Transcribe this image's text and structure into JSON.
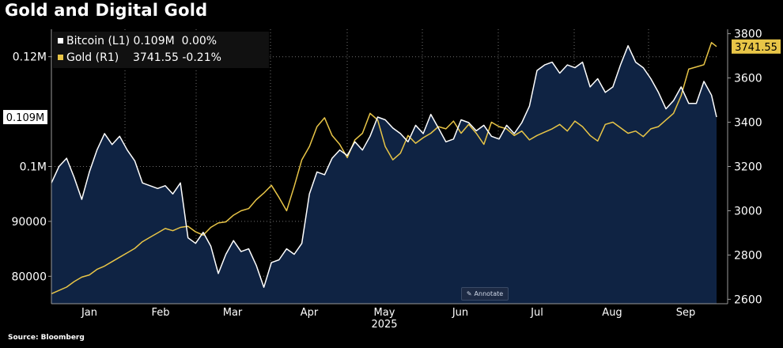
{
  "title": "Gold and Digital Gold",
  "source": "Source: Bloomberg",
  "annotate_label": "Annotate",
  "annotate_icon": "✎",
  "legend": {
    "bitcoin": {
      "name": "Bitcoin (L1)",
      "value": "0.109M",
      "change": "0.00%"
    },
    "gold": {
      "name": "Gold (R1)",
      "value": "3741.55",
      "change": "-0.21%"
    }
  },
  "chart_data": {
    "type": "line",
    "title": "Gold and Digital Gold",
    "xlabel": "2025",
    "x_ticks": [
      "Jan",
      "Feb",
      "Mar",
      "Apr",
      "May",
      "Jun",
      "Jul",
      "Aug",
      "Sep"
    ],
    "left_axis": {
      "ticks": [
        80000,
        90000,
        100000,
        120000
      ],
      "tick_labels": [
        "80000",
        "90000",
        "0.1M",
        "0.12M"
      ],
      "range": [
        75000,
        125000
      ],
      "last_value_label": "0.109M"
    },
    "right_axis": {
      "ticks": [
        2600,
        2800,
        3000,
        3200,
        3400,
        3600,
        3800
      ],
      "tick_labels": [
        "2600",
        "2800",
        "3000",
        "3200",
        "3400",
        "3600",
        "3800"
      ],
      "range": [
        2580,
        3820
      ],
      "last_value_label": "3741.55"
    },
    "colors": {
      "bitcoin": "#ffffff",
      "gold": "#e8c547",
      "area": "#0f2343",
      "grid": "#6f6f6f"
    },
    "series": [
      {
        "name": "Bitcoin (L1)",
        "axis": "left",
        "color": "#ffffff",
        "x": [
          0,
          3,
          6,
          9,
          12,
          15,
          18,
          21,
          24,
          27,
          30,
          33,
          36,
          39,
          42,
          45,
          48,
          51,
          54,
          57,
          60,
          63,
          66,
          69,
          72,
          75,
          78,
          81,
          84,
          87,
          90,
          93,
          96,
          99,
          102,
          105,
          108,
          111,
          114,
          117,
          120,
          123,
          126,
          129,
          132,
          135,
          138,
          141,
          144,
          147,
          150,
          153,
          156,
          159,
          162,
          165,
          168,
          171,
          174,
          177,
          180,
          183,
          186,
          189,
          192,
          195,
          198,
          201,
          204,
          207,
          210,
          213,
          216,
          219,
          222,
          225,
          228,
          231,
          234,
          237,
          240,
          243,
          246,
          249,
          252,
          255,
          258,
          261,
          263
        ],
        "values": [
          97000,
          100000,
          101500,
          98000,
          94000,
          99000,
          103000,
          106000,
          104000,
          105500,
          103000,
          101000,
          97000,
          96500,
          96000,
          96500,
          95000,
          97000,
          87000,
          86000,
          88000,
          85500,
          80500,
          84000,
          86500,
          84500,
          85000,
          82000,
          78000,
          82500,
          83000,
          85000,
          84000,
          86000,
          95000,
          99000,
          98500,
          101500,
          103000,
          102000,
          104500,
          103000,
          105500,
          109000,
          108500,
          107000,
          106000,
          104500,
          107500,
          106000,
          109500,
          107000,
          104500,
          105000,
          108500,
          108000,
          106500,
          107500,
          105500,
          105000,
          107500,
          106000,
          108000,
          111000,
          117500,
          118500,
          119000,
          117000,
          118500,
          118000,
          119000,
          114500,
          116000,
          113500,
          114500,
          118500,
          122000,
          119000,
          118000,
          116000,
          113500,
          110500,
          112000,
          114500,
          111500,
          111500,
          115500,
          113000,
          109000
        ]
      },
      {
        "name": "Gold (R1)",
        "axis": "right",
        "color": "#e8c547",
        "x": [
          0,
          3,
          6,
          9,
          12,
          15,
          18,
          21,
          24,
          27,
          30,
          33,
          36,
          39,
          42,
          45,
          48,
          51,
          54,
          57,
          60,
          63,
          66,
          69,
          72,
          75,
          78,
          81,
          84,
          87,
          90,
          93,
          96,
          99,
          102,
          105,
          108,
          111,
          114,
          117,
          120,
          123,
          126,
          129,
          132,
          135,
          138,
          141,
          144,
          147,
          150,
          153,
          156,
          159,
          162,
          165,
          168,
          171,
          174,
          177,
          180,
          183,
          186,
          189,
          192,
          195,
          198,
          201,
          204,
          207,
          210,
          213,
          216,
          219,
          222,
          225,
          228,
          231,
          234,
          237,
          240,
          243,
          246,
          249,
          252,
          255,
          258,
          261,
          263
        ],
        "values": [
          2625,
          2640,
          2655,
          2680,
          2700,
          2710,
          2735,
          2750,
          2770,
          2790,
          2810,
          2830,
          2860,
          2880,
          2900,
          2920,
          2910,
          2925,
          2930,
          2905,
          2890,
          2925,
          2945,
          2950,
          2980,
          3000,
          3010,
          3050,
          3080,
          3115,
          3060,
          3000,
          3110,
          3230,
          3290,
          3380,
          3420,
          3340,
          3300,
          3240,
          3320,
          3350,
          3440,
          3410,
          3290,
          3230,
          3260,
          3340,
          3305,
          3330,
          3350,
          3380,
          3370,
          3405,
          3350,
          3390,
          3350,
          3300,
          3400,
          3380,
          3370,
          3340,
          3360,
          3320,
          3340,
          3355,
          3370,
          3390,
          3360,
          3405,
          3380,
          3340,
          3315,
          3390,
          3400,
          3375,
          3350,
          3360,
          3335,
          3370,
          3380,
          3410,
          3440,
          3520,
          3640,
          3650,
          3660,
          3760,
          3742
        ]
      }
    ]
  }
}
